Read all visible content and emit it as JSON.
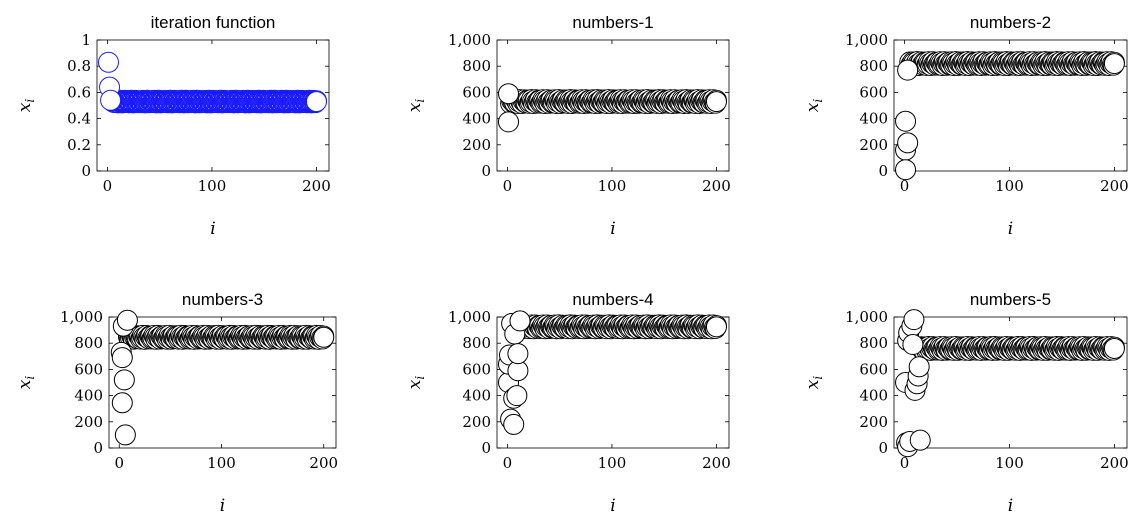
{
  "chart_data": [
    {
      "type": "scatter",
      "title": "iteration function",
      "xlabel": "i",
      "ylabel": "x",
      "ylabel_sub": "i",
      "xlim": [
        -10,
        212
      ],
      "ylim": [
        0,
        1
      ],
      "xticks": [
        "0",
        "100",
        "200"
      ],
      "xtick_values": [
        0,
        100,
        200
      ],
      "yticks": [
        "0",
        "0.2",
        "0.4",
        "0.6",
        "0.8",
        "1"
      ],
      "ytick_values": [
        0,
        0.2,
        0.4,
        0.6,
        0.8,
        1
      ],
      "marker_color": "#1a1aff",
      "marker_fill": "none",
      "transient": [
        [
          1,
          0.83
        ],
        [
          2,
          0.64
        ],
        [
          3,
          0.54
        ]
      ],
      "plateau": {
        "x_start": 4,
        "x_end": 200,
        "y": 0.53,
        "y_spread": 0.02
      }
    },
    {
      "type": "scatter",
      "title": "numbers-1",
      "xlabel": "i",
      "ylabel": "x",
      "ylabel_sub": "i",
      "xlim": [
        -10,
        212
      ],
      "ylim": [
        0,
        1000
      ],
      "xticks": [
        "0",
        "100",
        "200"
      ],
      "xtick_values": [
        0,
        100,
        200
      ],
      "yticks": [
        "0",
        "200",
        "400",
        "600",
        "800",
        "1,000"
      ],
      "ytick_values": [
        0,
        200,
        400,
        600,
        800,
        1000
      ],
      "marker_color": "#000000",
      "marker_fill": "#ffffff",
      "transient": [
        [
          1,
          590
        ],
        [
          1,
          375
        ]
      ],
      "plateau": {
        "x_start": 3,
        "x_end": 200,
        "y": 530,
        "y_spread": 30
      }
    },
    {
      "type": "scatter",
      "title": "numbers-2",
      "xlabel": "i",
      "ylabel": "x",
      "ylabel_sub": "i",
      "xlim": [
        -10,
        212
      ],
      "ylim": [
        0,
        1000
      ],
      "xticks": [
        "0",
        "100",
        "200"
      ],
      "xtick_values": [
        0,
        100,
        200
      ],
      "yticks": [
        "0",
        "200",
        "400",
        "600",
        "800",
        "1,000"
      ],
      "ytick_values": [
        0,
        200,
        400,
        600,
        800,
        1000
      ],
      "marker_color": "#000000",
      "marker_fill": "#ffffff",
      "transient": [
        [
          1,
          380
        ],
        [
          1,
          160
        ],
        [
          1,
          10
        ],
        [
          3,
          215
        ],
        [
          3,
          770
        ]
      ],
      "plateau": {
        "x_start": 5,
        "x_end": 200,
        "y": 820,
        "y_spread": 30
      }
    },
    {
      "type": "scatter",
      "title": "numbers-3",
      "xlabel": "i",
      "ylabel": "x",
      "ylabel_sub": "i",
      "xlim": [
        -10,
        212
      ],
      "ylim": [
        0,
        1000
      ],
      "xticks": [
        "0",
        "100",
        "200"
      ],
      "xtick_values": [
        0,
        100,
        200
      ],
      "yticks": [
        "0",
        "200",
        "400",
        "600",
        "800",
        "1,000"
      ],
      "ytick_values": [
        0,
        200,
        400,
        600,
        800,
        1000
      ],
      "marker_color": "#000000",
      "marker_fill": "#ffffff",
      "transient": [
        [
          2,
          730
        ],
        [
          3,
          690
        ],
        [
          3,
          345
        ],
        [
          4,
          930
        ],
        [
          5,
          520
        ],
        [
          6,
          100
        ],
        [
          8,
          975
        ]
      ],
      "plateau": {
        "x_start": 9,
        "x_end": 200,
        "y": 845,
        "y_spread": 30
      }
    },
    {
      "type": "scatter",
      "title": "numbers-4",
      "xlabel": "i",
      "ylabel": "x",
      "ylabel_sub": "i",
      "xlim": [
        -10,
        212
      ],
      "ylim": [
        0,
        1000
      ],
      "xticks": [
        "0",
        "100",
        "200"
      ],
      "xtick_values": [
        0,
        100,
        200
      ],
      "yticks": [
        "0",
        "200",
        "400",
        "600",
        "800",
        "1,000"
      ],
      "ytick_values": [
        0,
        200,
        400,
        600,
        800,
        1000
      ],
      "marker_color": "#000000",
      "marker_fill": "#ffffff",
      "transient": [
        [
          1,
          500
        ],
        [
          1,
          640
        ],
        [
          2,
          710
        ],
        [
          3,
          220
        ],
        [
          4,
          950
        ],
        [
          6,
          380
        ],
        [
          6,
          180
        ],
        [
          7,
          870
        ],
        [
          9,
          400
        ],
        [
          10,
          590
        ],
        [
          10,
          720
        ],
        [
          12,
          970
        ]
      ],
      "plateau": {
        "x_start": 13,
        "x_end": 200,
        "y": 925,
        "y_spread": 30
      }
    },
    {
      "type": "scatter",
      "title": "numbers-5",
      "xlabel": "i",
      "ylabel": "x",
      "ylabel_sub": "i",
      "xlim": [
        -10,
        212
      ],
      "ylim": [
        0,
        1000
      ],
      "xticks": [
        "0",
        "100",
        "200"
      ],
      "xtick_values": [
        0,
        100,
        200
      ],
      "yticks": [
        "0",
        "200",
        "400",
        "600",
        "800",
        "1,000"
      ],
      "ytick_values": [
        0,
        200,
        400,
        600,
        800,
        1000
      ],
      "marker_color": "#000000",
      "marker_fill": "#ffffff",
      "transient": [
        [
          1,
          500
        ],
        [
          2,
          40
        ],
        [
          3,
          10
        ],
        [
          3,
          820
        ],
        [
          4,
          880
        ],
        [
          5,
          50
        ],
        [
          7,
          930
        ],
        [
          8,
          790
        ],
        [
          9,
          980
        ],
        [
          10,
          440
        ],
        [
          12,
          490
        ],
        [
          13,
          550
        ],
        [
          14,
          620
        ],
        [
          15,
          60
        ]
      ],
      "plateau": {
        "x_start": 16,
        "x_end": 200,
        "y": 760,
        "y_spread": 30
      }
    }
  ]
}
